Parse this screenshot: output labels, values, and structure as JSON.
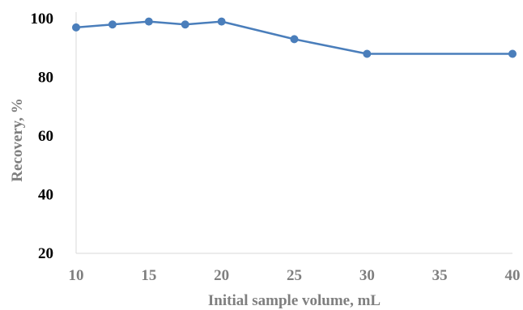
{
  "chart_data": {
    "type": "line",
    "title": "",
    "xlabel": "Initial sample volume, mL",
    "ylabel": "Recovery, %",
    "xlim": [
      10,
      40
    ],
    "ylim": [
      20,
      100
    ],
    "x_ticks": [
      "10",
      "15",
      "20",
      "25",
      "30",
      "35",
      "40"
    ],
    "y_ticks": [
      "20",
      "40",
      "60",
      "80",
      "100"
    ],
    "grid": false,
    "legend": "none",
    "series": [
      {
        "color": "#4a7ebb",
        "x": [
          10,
          12.5,
          15,
          17.5,
          20,
          25,
          30,
          40
        ],
        "y": [
          97,
          98,
          99,
          98,
          99,
          93,
          88,
          88
        ]
      }
    ]
  }
}
